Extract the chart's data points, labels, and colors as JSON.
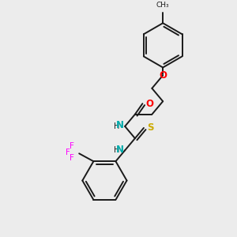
{
  "bg_color": "#ececec",
  "bond_color": "#1a1a1a",
  "colors": {
    "O": "#ff0000",
    "N": "#00aaaa",
    "S": "#ccaa00",
    "F": "#ff00ff",
    "H": "#1a1a1a"
  },
  "lw": 1.4
}
